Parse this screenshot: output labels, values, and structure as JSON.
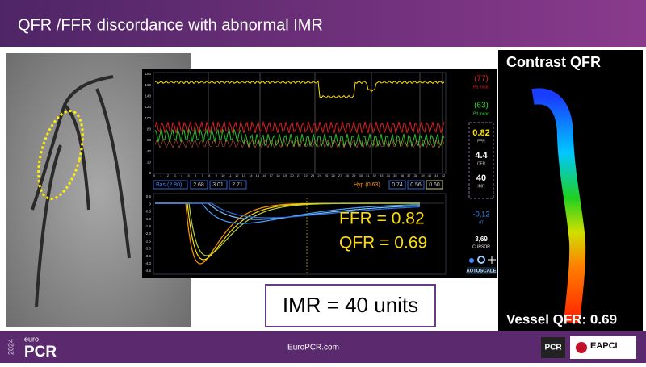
{
  "header": {
    "title": "QFR /FFR discordance with abnormal IMR"
  },
  "panel": {
    "pressure_axis": [
      "180",
      "160",
      "140",
      "120",
      "100",
      "80",
      "60",
      "40",
      "20",
      "0"
    ],
    "time_axis": [
      "0",
      "1",
      "2",
      "3",
      "4",
      "5",
      "6",
      "7",
      "8",
      "9",
      "10",
      "11",
      "12",
      "13",
      "14",
      "15",
      "16",
      "17",
      "18",
      "19",
      "20",
      "21",
      "22",
      "23",
      "24",
      "25",
      "26",
      "27",
      "28",
      "29",
      "30",
      "31",
      "32",
      "33",
      "34",
      "35",
      "36",
      "37",
      "38",
      "39",
      "40",
      "41",
      "42"
    ],
    "thermo_axis": [
      "0.5",
      "0",
      "-0.5",
      "-1.0",
      "-1.5",
      "-2.0",
      "-2.5",
      "-3.0",
      "-3.5",
      "-4.0",
      "-4.5"
    ],
    "pa": "(77)",
    "pa_label": "Pa mean",
    "pd": "(63)",
    "pd_label": "Pd mean",
    "indices": [
      {
        "value": "0.82",
        "label": "FFR"
      },
      {
        "value": "4.4",
        "label": "CFR"
      },
      {
        "value": "40",
        "label": "IMR"
      }
    ],
    "dt": "-0,12",
    "dt_label": "dT",
    "cursor": "3,69",
    "cursor_label": "CURSOR",
    "autoscale": "AUTOSCALE",
    "baseline": {
      "label": "Bas (2.80)",
      "values": [
        "2.68",
        "3.01",
        "2.71"
      ]
    },
    "hyperemia": {
      "label": "Hyp (0.63)",
      "values": [
        "0.74",
        "0.56",
        "0.60"
      ]
    },
    "ffr": "FFR = 0.82",
    "qfr": "QFR = 0.69"
  },
  "imr": "IMR = 40 units",
  "qfr_image": {
    "title": "Contrast QFR",
    "vessel": "Vessel QFR: 0.69"
  },
  "footer": {
    "year": "2024",
    "brand_small": "euro",
    "brand": "PCR",
    "url": "EuroPCR.com",
    "logo_pcr": "PCR",
    "logo_eapci": "EAPCI"
  }
}
